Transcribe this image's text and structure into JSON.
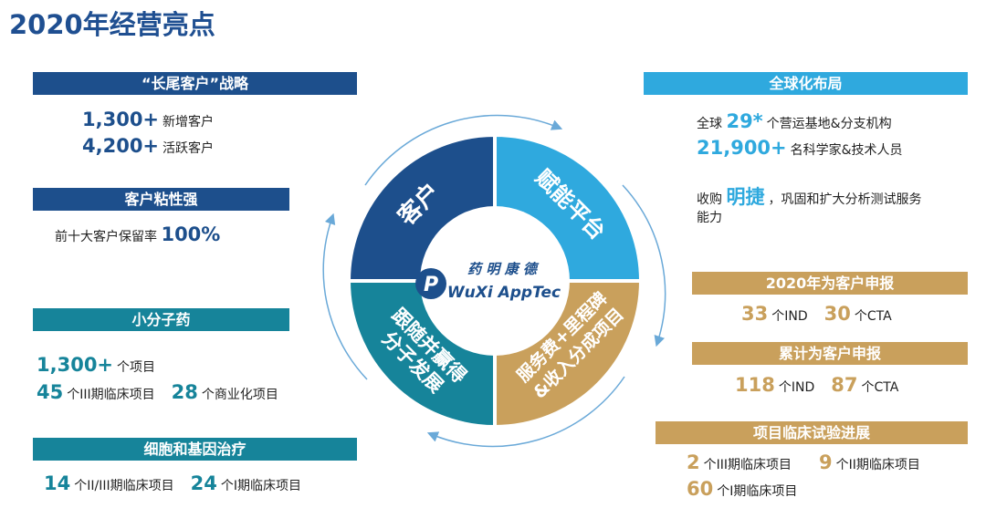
{
  "page_title": "2020年经营亮点",
  "left": {
    "long_tail": {
      "title": "“长尾客户”战略",
      "rows": [
        {
          "value": "1,300+",
          "label": "新增客户"
        },
        {
          "value": "4,200+",
          "label": "活跃客户"
        }
      ]
    },
    "stickiness": {
      "title": "客户粘性强",
      "text": "前十大客户保留率",
      "value": "100%"
    },
    "small_molecule": {
      "title": "小分子药",
      "row1": {
        "value": "1,300+",
        "label": "个项目"
      },
      "row2a": {
        "value": "45",
        "label": "个III期临床项目"
      },
      "row2b": {
        "value": "28",
        "label": "个商业化项目"
      }
    },
    "cell_gene": {
      "title": "细胞和基因治疗",
      "a": {
        "value": "14",
        "label": "个II/III期临床项目"
      },
      "b": {
        "value": "24",
        "label": "个I期临床项目"
      }
    }
  },
  "right": {
    "global": {
      "title": "全球化布局",
      "line1_prefix": "全球",
      "line1_value": "29*",
      "line1_label": "个营运基地&分支机构",
      "line2_value": "21,900+",
      "line2_label": "名科学家&技术人员",
      "line3_prefix": "收购",
      "line3_value": "明捷",
      "line3_label": "，巩固和扩大分析测试服务",
      "line4": "能力"
    },
    "filing_2020": {
      "title": "2020年为客户申报",
      "a": {
        "value": "33",
        "label": "个IND"
      },
      "b": {
        "value": "30",
        "label": "个CTA"
      }
    },
    "filing_total": {
      "title": "累计为客户申报",
      "a": {
        "value": "118",
        "label": "个IND"
      },
      "b": {
        "value": "87",
        "label": "个CTA"
      }
    },
    "clinical": {
      "title": "项目临床试验进展",
      "a": {
        "value": "2",
        "label": "个III期临床项目"
      },
      "b": {
        "value": "9",
        "label": "个II期临床项目"
      },
      "c": {
        "value": "60",
        "label": "个I期临床项目"
      }
    }
  },
  "wheel": {
    "customer": "客户",
    "platform": "赋能平台",
    "follow_1": "跟随并赢得",
    "follow_2": "分子发展",
    "fees_1": "服务费+里程碑",
    "fees_2": "&收入分成项目",
    "logo_cn": "药 明 康 德",
    "logo_en": "WuXi AppTec",
    "logo_mark": "P"
  },
  "colors": {
    "navy": "#1d4f8c",
    "sky": "#2fa9de",
    "teal": "#16849a",
    "gold": "#c9a05c"
  }
}
